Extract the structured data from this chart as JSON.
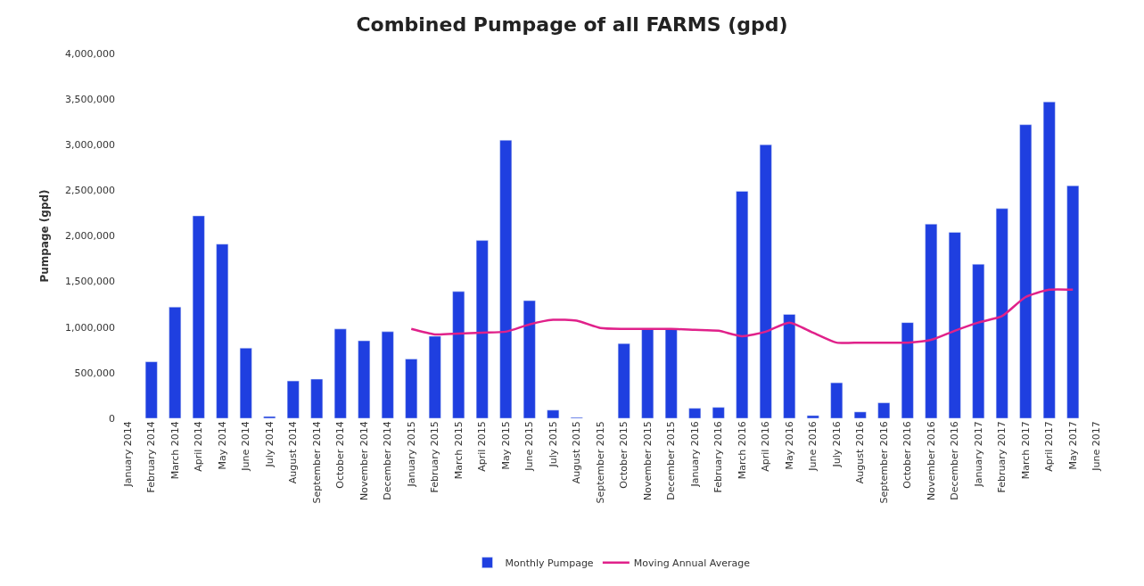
{
  "chart_data": {
    "type": "bar",
    "title": "Combined Pumpage of all FARMS (gpd)",
    "ylabel": "Pumpage (gpd)",
    "categories": [
      "January 2014",
      "February 2014",
      "March 2014",
      "April 2014",
      "May 2014",
      "June 2014",
      "July 2014",
      "August 2014",
      "September 2014",
      "October 2014",
      "November 2014",
      "December 2014",
      "January 2015",
      "February 2015",
      "March 2015",
      "April 2015",
      "May 2015",
      "June 2015",
      "July 2015",
      "August 2015",
      "September 2015",
      "October 2015",
      "November 2015",
      "December 2015",
      "January 2016",
      "February 2016",
      "March 2016",
      "April 2016",
      "May 2016",
      "June 2016",
      "July 2016",
      "August 2016",
      "September 2016",
      "October 2016",
      "November 2016",
      "December 2016",
      "January 2017",
      "February 2017",
      "March 2017",
      "April 2017",
      "May 2017",
      "June 2017"
    ],
    "series": [
      {
        "name": "Monthly Pumpage",
        "color": "#1f3fe0",
        "values": [
          null,
          620000,
          1220000,
          2220000,
          1910000,
          770000,
          20000,
          410000,
          430000,
          980000,
          850000,
          950000,
          650000,
          900000,
          1390000,
          1950000,
          3050000,
          1290000,
          90000,
          10000,
          null,
          820000,
          980000,
          980000,
          110000,
          120000,
          2490000,
          3000000,
          1140000,
          30000,
          390000,
          70000,
          170000,
          1050000,
          2130000,
          2040000,
          1690000,
          2300000,
          3220000,
          3470000,
          2550000,
          null
        ]
      },
      {
        "name": "Moving Annual Average",
        "type": "line",
        "color": "#e0218a",
        "values": [
          null,
          null,
          null,
          null,
          null,
          null,
          null,
          null,
          null,
          null,
          null,
          null,
          980000,
          920000,
          930000,
          940000,
          950000,
          1030000,
          1080000,
          1070000,
          990000,
          980000,
          980000,
          980000,
          970000,
          960000,
          900000,
          950000,
          1050000,
          940000,
          830000,
          830000,
          830000,
          830000,
          860000,
          960000,
          1050000,
          1120000,
          1330000,
          1410000,
          1410000,
          null
        ]
      }
    ],
    "ylim": [
      0,
      4000000
    ],
    "yticks": [
      {
        "value": 0,
        "label": "0"
      },
      {
        "value": 500000,
        "label": "500,000"
      },
      {
        "value": 1000000,
        "label": "1,000,000"
      },
      {
        "value": 1500000,
        "label": "1,500,000"
      },
      {
        "value": 2000000,
        "label": "2,000,000"
      },
      {
        "value": 2500000,
        "label": "2,500,000"
      },
      {
        "value": 3000000,
        "label": "3,000,000"
      },
      {
        "value": 3500000,
        "label": "3,500,000"
      },
      {
        "value": 4000000,
        "label": "4,000,000"
      }
    ],
    "legend": "bottom"
  }
}
